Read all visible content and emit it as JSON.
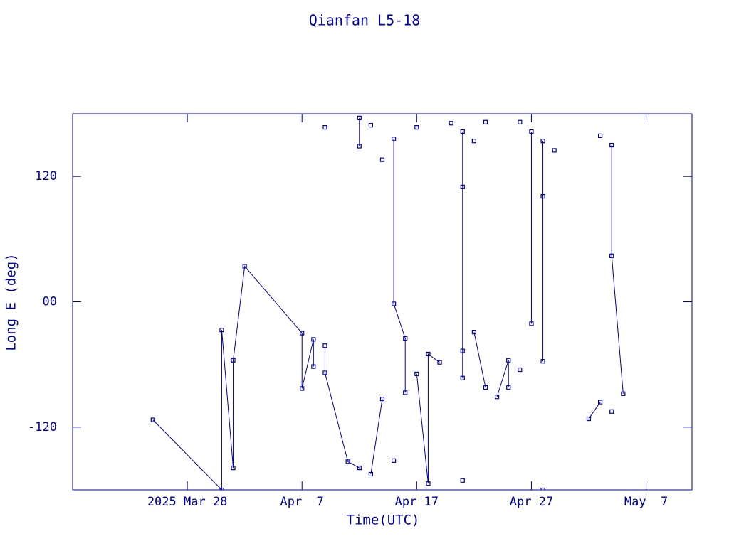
{
  "chart_data": {
    "type": "line",
    "title": "Qianfan L5-18",
    "x_label": "Time(UTC)",
    "y_label": "Long E (deg)",
    "xlim": [
      "2025-03-18",
      "2025-05-11"
    ],
    "xticks": [
      {
        "value": "2025-03-28",
        "label": "2025 Mar 28"
      },
      {
        "value": "2025-04-07",
        "label": "Apr  7"
      },
      {
        "value": "2025-04-17",
        "label": "Apr 17"
      },
      {
        "value": "2025-04-27",
        "label": "Apr 27"
      },
      {
        "value": "2025-05-07",
        "label": "May  7"
      }
    ],
    "ylim": [
      -180,
      180
    ],
    "yticks": [
      -120,
      {
        "value": 0,
        "label": "00"
      },
      120
    ],
    "color": "#0000a0",
    "x": [
      "2025-03-25",
      "2025-03-31",
      "2025-03-31",
      "2025-04-01",
      "2025-04-01",
      "2025-04-02",
      "2025-04-07",
      "2025-04-07",
      "2025-04-08",
      "2025-04-08",
      null,
      "2025-04-09",
      null,
      "2025-04-09",
      "2025-04-09",
      "2025-04-11",
      "2025-04-12",
      null,
      "2025-04-12",
      "2025-04-12",
      null,
      "2025-04-13",
      null,
      "2025-04-13",
      "2025-04-14",
      null,
      "2025-04-14",
      null,
      "2025-04-15",
      null,
      "2025-04-15",
      "2025-04-15",
      "2025-04-16",
      "2025-04-16",
      null,
      "2025-04-17",
      null,
      "2025-04-17",
      "2025-04-18",
      "2025-04-18",
      "2025-04-19",
      null,
      "2025-04-20",
      null,
      "2025-04-21",
      null,
      "2025-04-21",
      "2025-04-21",
      "2025-04-21",
      "2025-04-21",
      null,
      "2025-04-22",
      null,
      "2025-04-22",
      "2025-04-23",
      null,
      "2025-04-23",
      null,
      "2025-04-24",
      "2025-04-25",
      "2025-04-25",
      null,
      "2025-04-26",
      null,
      "2025-04-26",
      null,
      "2025-04-27",
      "2025-04-27",
      null,
      "2025-04-28",
      null,
      "2025-04-28",
      "2025-04-28",
      "2025-04-28",
      null,
      "2025-04-29",
      null,
      "2025-05-02",
      "2025-05-03",
      null,
      "2025-05-03",
      null,
      "2025-05-04",
      null,
      "2025-05-04",
      "2025-05-04",
      "2025-05-05"
    ],
    "values": [
      -113,
      -180,
      -27,
      -159,
      -56,
      34,
      -30,
      -83,
      -36,
      -62,
      null,
      167,
      null,
      -42,
      -68,
      -153,
      -159,
      null,
      176,
      149,
      null,
      169,
      null,
      -165,
      -93,
      null,
      136,
      null,
      -152,
      null,
      156,
      -2,
      -35,
      -87,
      null,
      167,
      null,
      -69,
      -174,
      -50,
      -58,
      null,
      171,
      null,
      -171,
      null,
      163,
      110,
      -47,
      -73,
      null,
      154,
      null,
      -29,
      -82,
      null,
      172,
      null,
      -91,
      -56,
      -82,
      null,
      172,
      null,
      -65,
      null,
      163,
      -21,
      null,
      -180,
      null,
      154,
      101,
      -57,
      null,
      145,
      null,
      -112,
      -96,
      null,
      159,
      null,
      -105,
      null,
      150,
      44,
      -88
    ]
  }
}
